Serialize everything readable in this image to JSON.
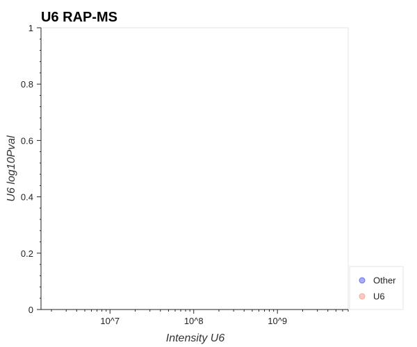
{
  "chart_data": {
    "type": "scatter",
    "title": "U6 RAP-MS",
    "xlabel": "Intensity U6",
    "ylabel": "U6 log10Pval",
    "x_scale": "log",
    "xlim": [
      1500000,
      7000000000
    ],
    "ylim": [
      0,
      1
    ],
    "x_ticks": [
      {
        "value": 10000000,
        "label": "10^7"
      },
      {
        "value": 100000000,
        "label": "10^8"
      },
      {
        "value": 1000000000,
        "label": "10^9"
      }
    ],
    "y_ticks": [
      {
        "value": 0,
        "label": "0"
      },
      {
        "value": 0.2,
        "label": "0.2"
      },
      {
        "value": 0.4,
        "label": "0.4"
      },
      {
        "value": 0.6,
        "label": "0.6"
      },
      {
        "value": 0.8,
        "label": "0.8"
      },
      {
        "value": 1,
        "label": "1"
      }
    ],
    "grid": false,
    "legend_position": "bottom-right",
    "series": [
      {
        "name": "Other",
        "color": "#6b74f0",
        "points": []
      },
      {
        "name": "U6",
        "color": "#f7a99a",
        "points": []
      }
    ]
  }
}
